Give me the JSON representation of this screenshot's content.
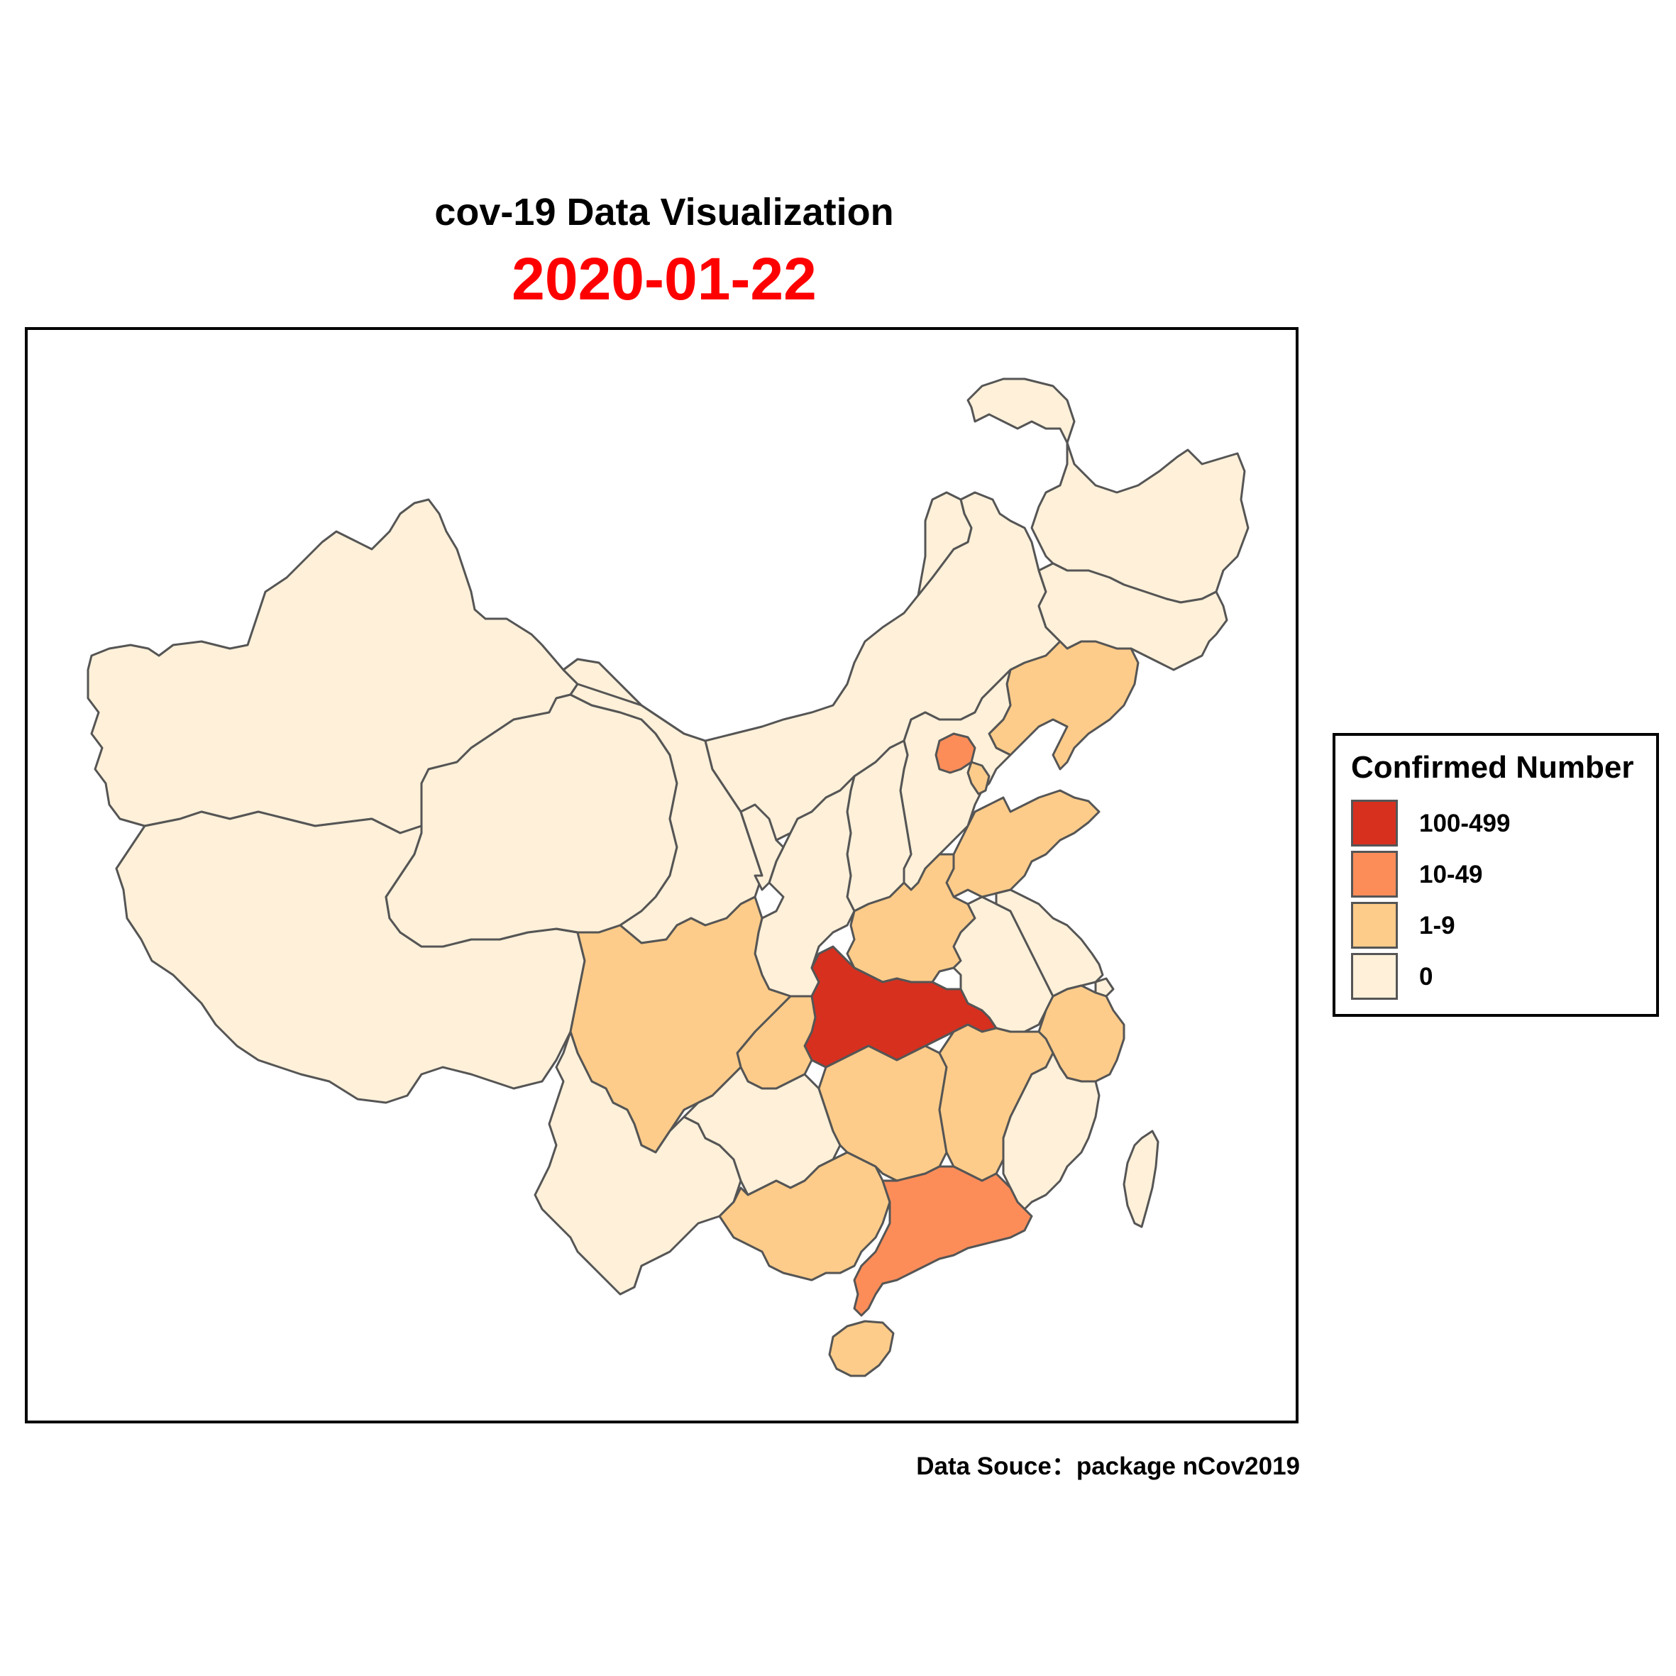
{
  "title": "cov-19 Data Visualization",
  "subtitle": "2020-01-22",
  "subtitle_color": "#ff0000",
  "caption": "Data Souce：package nCov2019",
  "legend": {
    "title": "Confirmed Number",
    "items": [
      {
        "label": "100-499",
        "color": "#d7301f"
      },
      {
        "label": "10-49",
        "color": "#fc8d59"
      },
      {
        "label": "1-9",
        "color": "#fdcc8a"
      },
      {
        "label": "0",
        "color": "#fef0d9"
      }
    ]
  },
  "chart_data": {
    "type": "choropleth",
    "title": "cov-19 Data Visualization",
    "subtitle": "2020-01-22",
    "legend_title": "Confirmed Number",
    "legend_position": "right",
    "bins": [
      "100-499",
      "10-49",
      "1-9",
      "0"
    ],
    "regions": [
      {
        "region": "Hubei",
        "bin": "100-499"
      },
      {
        "region": "Guangdong",
        "bin": "10-49"
      },
      {
        "region": "Beijing",
        "bin": "10-49"
      },
      {
        "region": "Sichuan",
        "bin": "1-9"
      },
      {
        "region": "Chongqing",
        "bin": "1-9"
      },
      {
        "region": "Hunan",
        "bin": "1-9"
      },
      {
        "region": "Jiangxi",
        "bin": "1-9"
      },
      {
        "region": "Henan",
        "bin": "1-9"
      },
      {
        "region": "Shandong",
        "bin": "1-9"
      },
      {
        "region": "Zhejiang",
        "bin": "1-9"
      },
      {
        "region": "Guangxi",
        "bin": "1-9"
      },
      {
        "region": "Hainan",
        "bin": "1-9"
      },
      {
        "region": "Liaoning",
        "bin": "1-9"
      },
      {
        "region": "Tianjin",
        "bin": "1-9"
      },
      {
        "region": "Xinjiang",
        "bin": "0"
      },
      {
        "region": "Tibet",
        "bin": "0"
      },
      {
        "region": "Qinghai",
        "bin": "0"
      },
      {
        "region": "Gansu",
        "bin": "0"
      },
      {
        "region": "Inner Mongolia",
        "bin": "0"
      },
      {
        "region": "Heilongjiang",
        "bin": "0"
      },
      {
        "region": "Jilin",
        "bin": "0"
      },
      {
        "region": "Hebei",
        "bin": "0"
      },
      {
        "region": "Shanxi",
        "bin": "0"
      },
      {
        "region": "Shaanxi",
        "bin": "0"
      },
      {
        "region": "Ningxia",
        "bin": "0"
      },
      {
        "region": "Yunnan",
        "bin": "0"
      },
      {
        "region": "Guizhou",
        "bin": "0"
      },
      {
        "region": "Anhui",
        "bin": "0"
      },
      {
        "region": "Jiangsu",
        "bin": "0"
      },
      {
        "region": "Shanghai",
        "bin": "0"
      },
      {
        "region": "Fujian",
        "bin": "0"
      },
      {
        "region": "Taiwan",
        "bin": "0"
      }
    ]
  }
}
